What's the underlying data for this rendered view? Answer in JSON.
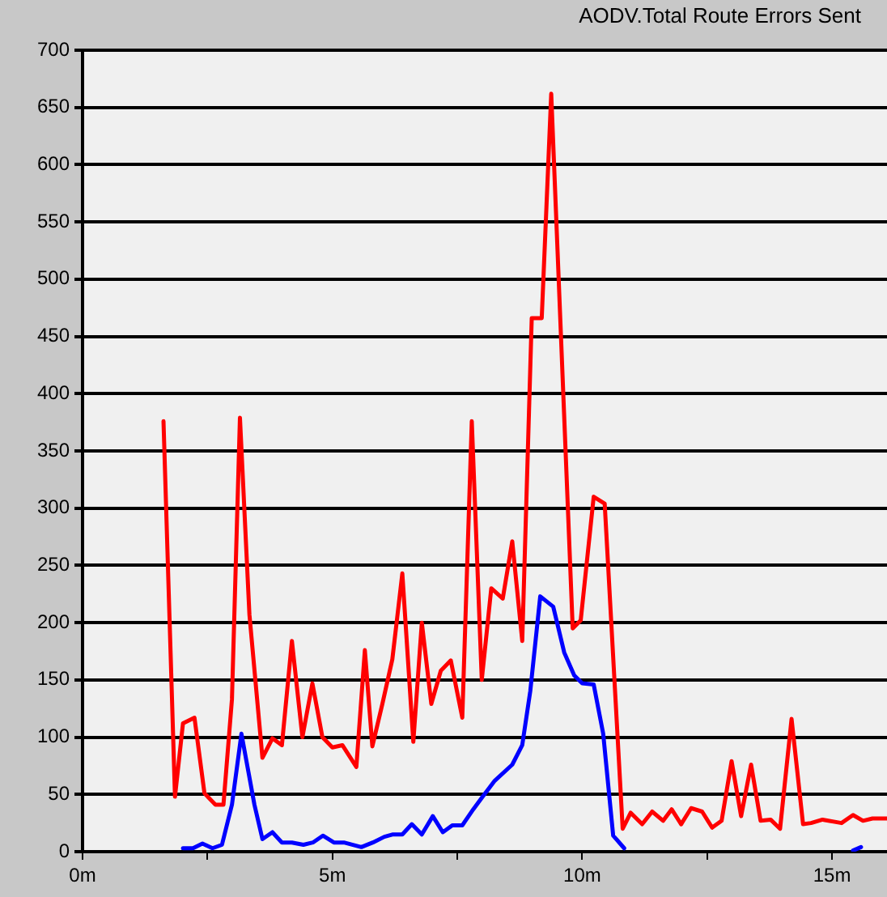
{
  "chart_data": {
    "type": "line",
    "title": "AODV.Total Route Errors Sent",
    "xlim": [
      0,
      16.1
    ],
    "xticks": [
      {
        "value": 0,
        "label": "0m"
      },
      {
        "value": 2.5,
        "label": null
      },
      {
        "value": 5,
        "label": "5m"
      },
      {
        "value": 7.5,
        "label": null
      },
      {
        "value": 10,
        "label": "10m"
      },
      {
        "value": 12.5,
        "label": null
      },
      {
        "value": 15,
        "label": "15m"
      }
    ],
    "ylim": [
      0,
      700
    ],
    "yticks": [
      0,
      50,
      100,
      150,
      200,
      250,
      300,
      350,
      400,
      450,
      500,
      550,
      600,
      650,
      700
    ],
    "grid": "y",
    "legend": false,
    "marker": "none",
    "line_style": "solid",
    "series": [
      {
        "color": "#ff0000",
        "x": [
          1.62,
          1.85,
          2.01,
          2.24,
          2.44,
          2.66,
          2.82,
          2.99,
          3.15,
          3.34,
          3.6,
          3.8,
          3.99,
          4.19,
          4.4,
          4.6,
          4.8,
          5.0,
          5.2,
          5.48,
          5.65,
          5.8,
          6.0,
          6.2,
          6.4,
          6.62,
          6.79,
          6.98,
          7.17,
          7.37,
          7.6,
          7.79,
          7.99,
          8.18,
          8.41,
          8.6,
          8.8,
          8.99,
          9.19,
          9.38,
          9.81,
          9.97,
          10.23,
          10.45,
          10.81,
          10.97,
          11.2,
          11.4,
          11.62,
          11.79,
          11.98,
          12.18,
          12.4,
          12.6,
          12.79,
          12.99,
          13.18,
          13.38,
          13.57,
          13.77,
          13.96,
          14.19,
          14.42,
          14.58,
          14.81,
          15.19,
          15.42,
          15.62,
          15.81,
          16.1
        ],
        "values": [
          376,
          48,
          112,
          117,
          51,
          41,
          41,
          133,
          379,
          207,
          82,
          99,
          93,
          184,
          100,
          147,
          100,
          91,
          93,
          74,
          176,
          92,
          129,
          168,
          243,
          96,
          200,
          129,
          158,
          167,
          117,
          376,
          150,
          230,
          221,
          271,
          184,
          466,
          466,
          662,
          195,
          202,
          310,
          304,
          20,
          34,
          24,
          35,
          27,
          37,
          24,
          38,
          35,
          21,
          27,
          79,
          31,
          76,
          27,
          28,
          20,
          116,
          24,
          25,
          28,
          25,
          32,
          27,
          29,
          29
        ]
      },
      {
        "color": "#0000ff",
        "x": [
          2.01,
          2.21,
          2.4,
          2.6,
          2.79,
          2.99,
          3.18,
          3.44,
          3.6,
          3.8,
          3.99,
          4.19,
          4.42,
          4.61,
          4.81,
          5.03,
          5.23,
          5.58,
          5.81,
          6.04,
          6.2,
          6.4,
          6.59,
          6.79,
          7.01,
          7.21,
          7.4,
          7.6,
          7.82,
          7.99,
          8.25,
          8.6,
          8.8,
          8.96,
          9.16,
          9.42,
          9.64,
          9.84,
          10.0,
          10.23,
          10.42,
          10.62,
          10.84,
          13.0,
          15.42,
          15.58
        ],
        "values": [
          3,
          3,
          7,
          3,
          6,
          41,
          103,
          41,
          11,
          17,
          8,
          8,
          6,
          8,
          14,
          8,
          8,
          4,
          8,
          13,
          15,
          15,
          24,
          15,
          31,
          17,
          23,
          23,
          37,
          47,
          62,
          76,
          93,
          140,
          223,
          214,
          174,
          154,
          147,
          146,
          103,
          14,
          3,
          null,
          1,
          4
        ]
      }
    ]
  }
}
